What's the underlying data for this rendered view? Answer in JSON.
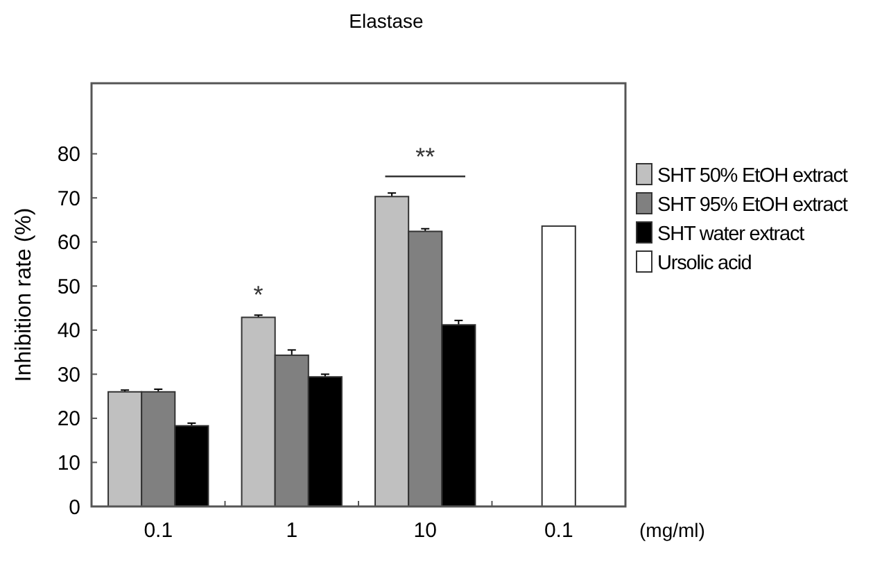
{
  "chart_data": {
    "type": "bar",
    "title": "Elastase",
    "ylabel": "Inhibition rate (%)",
    "xlabel": "(mg/ml)",
    "categories": [
      "0.1",
      "1",
      "10",
      "0.1"
    ],
    "series": [
      {
        "name": "SHT 50% EtOH extract",
        "color": "#c0c0c0",
        "values": [
          26,
          42.9,
          70.3,
          null
        ],
        "errors": [
          0.4,
          0.5,
          0.8,
          null
        ]
      },
      {
        "name": "SHT 95% EtOH extract",
        "color": "#808080",
        "values": [
          26,
          34.3,
          62.4,
          null
        ],
        "errors": [
          0.6,
          1.2,
          0.6,
          null
        ]
      },
      {
        "name": "SHT water extract",
        "color": "#000000",
        "values": [
          18.3,
          29.4,
          41.2,
          null
        ],
        "errors": [
          0.6,
          0.6,
          1.0,
          null
        ]
      },
      {
        "name": "Ursolic acid",
        "color": "#ffffff",
        "values": [
          null,
          null,
          null,
          63.6
        ]
      }
    ],
    "ylim": [
      0,
      96
    ],
    "yticks": [
      0,
      10,
      20,
      30,
      40,
      50,
      60,
      70,
      80
    ],
    "annotations": [
      "*",
      "**"
    ],
    "legend": "right",
    "grid": false
  }
}
